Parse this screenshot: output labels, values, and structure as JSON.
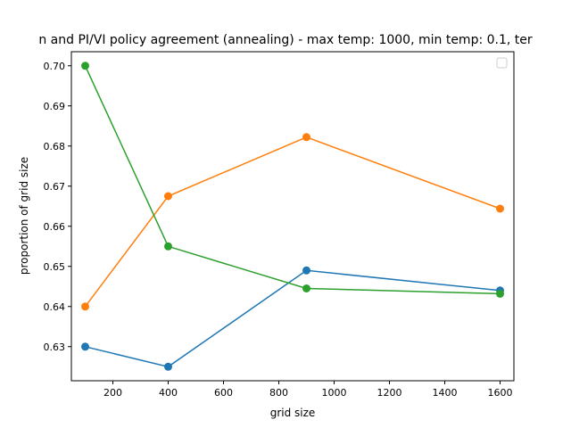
{
  "chart_data": {
    "type": "line",
    "title": "n and PI/VI policy agreement (annealing) - max temp: 1000, min temp: 0.1, ter",
    "xlabel": "grid size",
    "ylabel": "proportion of grid size",
    "xlim": [
      50,
      1650
    ],
    "ylim": [
      0.6215,
      0.7035
    ],
    "xticks": [
      200,
      400,
      600,
      800,
      1000,
      1200,
      1400,
      1600
    ],
    "xtick_labels": [
      "200",
      "400",
      "600",
      "800",
      "1000",
      "1200",
      "1400",
      "1600"
    ],
    "yticks": [
      0.63,
      0.64,
      0.65,
      0.66,
      0.67,
      0.68,
      0.69,
      0.7
    ],
    "ytick_labels": [
      "0.63",
      "0.64",
      "0.65",
      "0.66",
      "0.67",
      "0.68",
      "0.69",
      "0.70"
    ],
    "x": [
      100,
      400,
      900,
      1600
    ],
    "series": [
      {
        "values": [
          0.63,
          0.625,
          0.649,
          0.644
        ],
        "color": "#1f77b4"
      },
      {
        "values": [
          0.64,
          0.6675,
          0.6822,
          0.6644
        ],
        "color": "#ff7f0e"
      },
      {
        "values": [
          0.7,
          0.655,
          0.6445,
          0.6432
        ],
        "color": "#2ca02c"
      }
    ],
    "legend": {
      "placement": "top-right",
      "entries": []
    },
    "grid": false,
    "markers": "circle"
  }
}
